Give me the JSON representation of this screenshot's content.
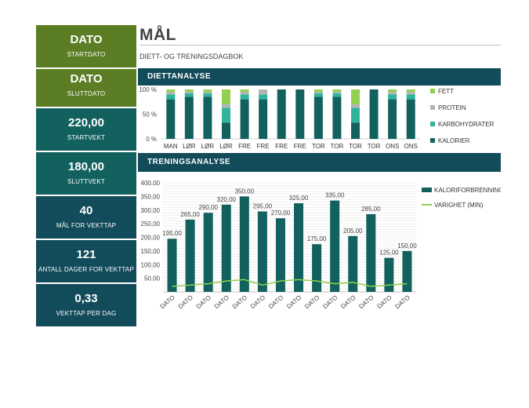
{
  "sidebar": {
    "cards": [
      {
        "value": "DATO",
        "label": "STARTDATO"
      },
      {
        "value": "DATO",
        "label": "SLUTTDATO"
      },
      {
        "value": "220,00",
        "label": "STARTVEKT"
      },
      {
        "value": "180,00",
        "label": "SLUTTVEKT"
      },
      {
        "value": "40",
        "label": "MÅL FOR VEKTTAP"
      },
      {
        "value": "121",
        "label": "ANTALL DAGER FOR VEKTTAP"
      },
      {
        "value": "0,33",
        "label": "VEKTTAP PER DAG"
      }
    ]
  },
  "header": {
    "title": "MÅL",
    "subtitle": "DIETT- OG TRENINGSDAGBOK"
  },
  "sections": {
    "diet": "DIETTANALYSE",
    "training": "TRENINGSANALYSE"
  },
  "colors": {
    "fett": "#92d050",
    "protein": "#b3b3b3",
    "karbohydrater": "#2fb39b",
    "kalorier": "#12615f",
    "varighet": "#8fd14f"
  },
  "chart_data": [
    {
      "type": "bar",
      "stacked": "percent",
      "categories": [
        "MAN",
        "LØR",
        "LØR",
        "LØR",
        "FRE",
        "FRE",
        "FRE",
        "FRE",
        "TOR",
        "TOR",
        "TOR",
        "TOR",
        "ONS",
        "ONS"
      ],
      "series": [
        {
          "name": "KALORIER",
          "values": [
            80,
            85,
            85,
            33,
            80,
            80,
            100,
            100,
            85,
            85,
            33,
            100,
            80,
            80
          ]
        },
        {
          "name": "KARBOHYDRATER",
          "values": [
            10,
            7,
            7,
            30,
            10,
            10,
            0,
            0,
            7,
            7,
            30,
            0,
            10,
            10
          ]
        },
        {
          "name": "PROTEIN",
          "values": [
            5,
            3,
            3,
            7,
            5,
            10,
            0,
            0,
            3,
            3,
            7,
            0,
            5,
            5
          ]
        },
        {
          "name": "FETT",
          "values": [
            5,
            5,
            5,
            30,
            5,
            0,
            0,
            0,
            5,
            5,
            30,
            0,
            5,
            5
          ]
        }
      ],
      "yticks": [
        "0 %",
        "50 %",
        "100 %"
      ],
      "ylim": [
        0,
        100
      ],
      "legend": "right"
    },
    {
      "type": "bar",
      "categories": [
        "DATO",
        "DATO",
        "DATO",
        "DATO",
        "DATO",
        "DATO",
        "DATO",
        "DATO",
        "DATO",
        "DATO",
        "DATO",
        "DATO",
        "DATO",
        "DATO"
      ],
      "series": [
        {
          "name": "KALORIFORBRENNING",
          "type": "bar",
          "values": [
            195,
            265,
            290,
            320,
            350,
            295,
            270,
            325,
            175,
            335,
            205,
            285,
            125,
            150
          ]
        },
        {
          "name": "VARIGHET (MIN)",
          "type": "line",
          "values": [
            20,
            25,
            30,
            40,
            45,
            25,
            40,
            45,
            40,
            30,
            35,
            20,
            25,
            30
          ]
        }
      ],
      "data_labels": [
        "195,00",
        "265,00",
        "290,00",
        "320,00",
        "350,00",
        "295,00",
        "270,00",
        "325,00",
        "175,00",
        "335,00",
        "205,00",
        "285,00",
        "125,00",
        "150,00"
      ],
      "yticks": [
        "50,00",
        "100,00",
        "150,00",
        "200,00",
        "250,00",
        "300,00",
        "350,00",
        "400,00"
      ],
      "ylim": [
        0,
        400
      ],
      "grid": true,
      "legend": "right"
    }
  ]
}
